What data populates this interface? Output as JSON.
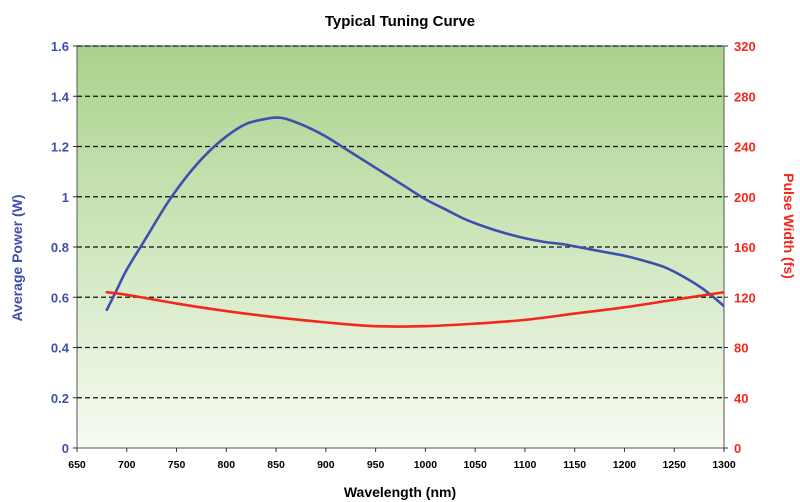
{
  "chart_data": {
    "type": "line",
    "title": "Typical Tuning Curve",
    "xlabel": "Wavelength (nm)",
    "ylabel": "Average Power (W)",
    "y2label": "Pulse Width (fs)",
    "xlim": [
      650,
      1300
    ],
    "ylim": [
      0,
      1.6
    ],
    "y2lim": [
      0,
      320
    ],
    "x_ticks": [
      "650",
      "700",
      "750",
      "800",
      "850",
      "900",
      "950",
      "1000",
      "1050",
      "1100",
      "1150",
      "1200",
      "1250",
      "1300"
    ],
    "y_ticks": [
      "0",
      "0.2",
      "0.4",
      "0.6",
      "0.8",
      "1",
      "1.2",
      "1.4",
      "1.6"
    ],
    "y2_ticks": [
      "0",
      "40",
      "80",
      "120",
      "160",
      "200",
      "240",
      "280",
      "320"
    ],
    "grid": "horizontal-dashed",
    "background": "gradient-green-to-white",
    "colors": {
      "power": "#3f4fae",
      "pulse": "#f4271c",
      "left_axis": "#3f4fae",
      "right_axis": "#f4271c",
      "grad_top": "#a9d28b",
      "grad_bottom": "#f7fbf2"
    },
    "series": [
      {
        "axis": "left",
        "color": "#3f4fae",
        "x": [
          680,
          690,
          700,
          720,
          740,
          760,
          780,
          800,
          820,
          840,
          850,
          860,
          880,
          900,
          920,
          940,
          960,
          980,
          1000,
          1020,
          1040,
          1060,
          1080,
          1100,
          1120,
          1140,
          1160,
          1180,
          1200,
          1220,
          1240,
          1260,
          1280,
          1300
        ],
        "values": [
          0.55,
          0.63,
          0.71,
          0.84,
          0.97,
          1.08,
          1.17,
          1.24,
          1.29,
          1.31,
          1.315,
          1.31,
          1.28,
          1.24,
          1.19,
          1.14,
          1.09,
          1.04,
          0.99,
          0.95,
          0.91,
          0.88,
          0.855,
          0.835,
          0.82,
          0.81,
          0.795,
          0.78,
          0.765,
          0.745,
          0.72,
          0.68,
          0.63,
          0.565
        ]
      },
      {
        "axis": "right",
        "color": "#f4271c",
        "x": [
          680,
          700,
          750,
          800,
          850,
          900,
          950,
          1000,
          1050,
          1100,
          1150,
          1200,
          1250,
          1300
        ],
        "values": [
          124,
          122,
          115,
          109,
          104,
          100,
          97,
          97,
          99,
          102,
          107,
          112,
          118,
          124
        ]
      }
    ]
  }
}
